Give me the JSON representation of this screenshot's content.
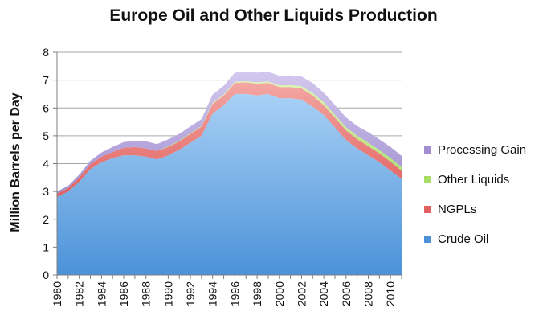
{
  "chart_data": {
    "type": "area",
    "stacked": true,
    "title": "Europe Oil and Other Liquids Production",
    "xlabel": "",
    "ylabel": "Million Barrels per Day",
    "xlim": [
      1980,
      2011
    ],
    "ylim": [
      0,
      8
    ],
    "yticks": [
      0,
      1,
      2,
      3,
      4,
      5,
      6,
      7,
      8
    ],
    "xticks": [
      1980,
      1982,
      1984,
      1986,
      1988,
      1990,
      1992,
      1994,
      1996,
      1998,
      2000,
      2002,
      2004,
      2006,
      2008,
      2010
    ],
    "grid": "horizontal",
    "legend_position": "right",
    "x": [
      1980,
      1981,
      1982,
      1983,
      1984,
      1985,
      1986,
      1987,
      1988,
      1989,
      1990,
      1991,
      1992,
      1993,
      1994,
      1995,
      1996,
      1997,
      1998,
      1999,
      2000,
      2001,
      2002,
      2003,
      2004,
      2005,
      2006,
      2007,
      2008,
      2009,
      2010,
      2011
    ],
    "series": [
      {
        "name": "Crude Oil",
        "color": "#6aaee8",
        "values": [
          2.8,
          3.0,
          3.35,
          3.8,
          4.05,
          4.2,
          4.3,
          4.3,
          4.25,
          4.15,
          4.3,
          4.5,
          4.75,
          5.0,
          5.8,
          6.1,
          6.5,
          6.5,
          6.45,
          6.5,
          6.35,
          6.35,
          6.3,
          6.05,
          5.75,
          5.3,
          4.85,
          4.55,
          4.3,
          4.05,
          3.75,
          3.45
        ]
      },
      {
        "name": "NGPLs",
        "color": "#ef8c8c",
        "values": [
          0.12,
          0.12,
          0.15,
          0.18,
          0.2,
          0.22,
          0.27,
          0.3,
          0.3,
          0.3,
          0.3,
          0.3,
          0.32,
          0.33,
          0.35,
          0.35,
          0.4,
          0.42,
          0.42,
          0.4,
          0.4,
          0.4,
          0.4,
          0.4,
          0.35,
          0.35,
          0.35,
          0.33,
          0.33,
          0.32,
          0.32,
          0.3
        ]
      },
      {
        "name": "Other Liquids",
        "color": "#c8ee8c",
        "values": [
          0.0,
          0.0,
          0.0,
          0.0,
          0.0,
          0.0,
          0.0,
          0.0,
          0.0,
          0.0,
          0.02,
          0.02,
          0.02,
          0.02,
          0.03,
          0.03,
          0.04,
          0.04,
          0.05,
          0.05,
          0.06,
          0.07,
          0.08,
          0.09,
          0.1,
          0.1,
          0.11,
          0.12,
          0.12,
          0.12,
          0.13,
          0.13
        ]
      },
      {
        "name": "Processing Gain",
        "color": "#b9a8dc",
        "values": [
          0.08,
          0.08,
          0.1,
          0.12,
          0.15,
          0.18,
          0.2,
          0.22,
          0.25,
          0.25,
          0.25,
          0.25,
          0.25,
          0.25,
          0.3,
          0.32,
          0.33,
          0.33,
          0.35,
          0.35,
          0.35,
          0.35,
          0.35,
          0.35,
          0.35,
          0.35,
          0.35,
          0.35,
          0.38,
          0.38,
          0.4,
          0.4
        ]
      }
    ]
  }
}
